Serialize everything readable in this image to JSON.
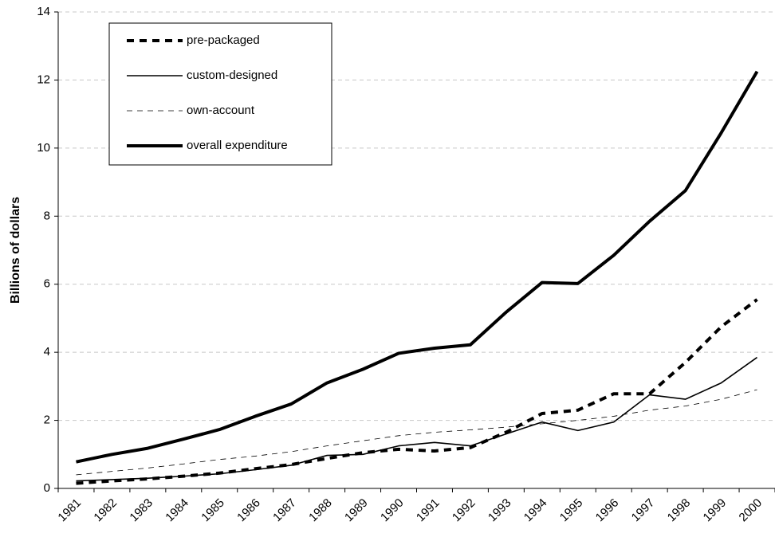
{
  "chart_data": {
    "type": "line",
    "y_label": "Billions of dollars",
    "categories": [
      "1981",
      "1982",
      "1983",
      "1984",
      "1985",
      "1986",
      "1987",
      "1988",
      "1989",
      "1990",
      "1991",
      "1992",
      "1993",
      "1994",
      "1995",
      "1996",
      "1997",
      "1998",
      "1999",
      "2000"
    ],
    "series": [
      {
        "name": "pre-packaged",
        "color": "#000000",
        "line_style": "dashed",
        "line_weight": "bold",
        "values": [
          0.15,
          0.22,
          0.28,
          0.36,
          0.45,
          0.58,
          0.7,
          0.88,
          1.05,
          1.15,
          1.1,
          1.2,
          1.65,
          2.2,
          2.3,
          2.78,
          2.78,
          3.7,
          4.75,
          5.55
        ]
      },
      {
        "name": "custom-designed",
        "color": "#000000",
        "line_style": "solid",
        "line_weight": "normal",
        "values": [
          0.22,
          0.26,
          0.3,
          0.36,
          0.43,
          0.55,
          0.68,
          0.97,
          1.0,
          1.25,
          1.35,
          1.25,
          1.6,
          1.95,
          1.7,
          1.95,
          2.75,
          2.62,
          3.1,
          3.85
        ]
      },
      {
        "name": "own-account",
        "color": "#000000",
        "line_style": "dashed",
        "line_weight": "thin",
        "values": [
          0.4,
          0.5,
          0.6,
          0.72,
          0.85,
          0.95,
          1.08,
          1.25,
          1.4,
          1.55,
          1.65,
          1.72,
          1.8,
          1.9,
          2.0,
          2.12,
          2.3,
          2.42,
          2.62,
          2.9
        ]
      },
      {
        "name": "overall expenditure",
        "color": "#000000",
        "line_style": "solid",
        "line_weight": "bold",
        "values": [
          0.78,
          1.0,
          1.18,
          1.45,
          1.73,
          2.12,
          2.48,
          3.1,
          3.5,
          3.97,
          4.12,
          4.22,
          5.18,
          6.05,
          6.02,
          6.85,
          7.85,
          8.75,
          10.45,
          12.25
        ]
      }
    ],
    "ylim": [
      0,
      14
    ],
    "yticks": [
      0,
      2,
      4,
      6,
      8,
      10,
      12,
      14
    ],
    "grid": true,
    "legend": "top-left"
  }
}
